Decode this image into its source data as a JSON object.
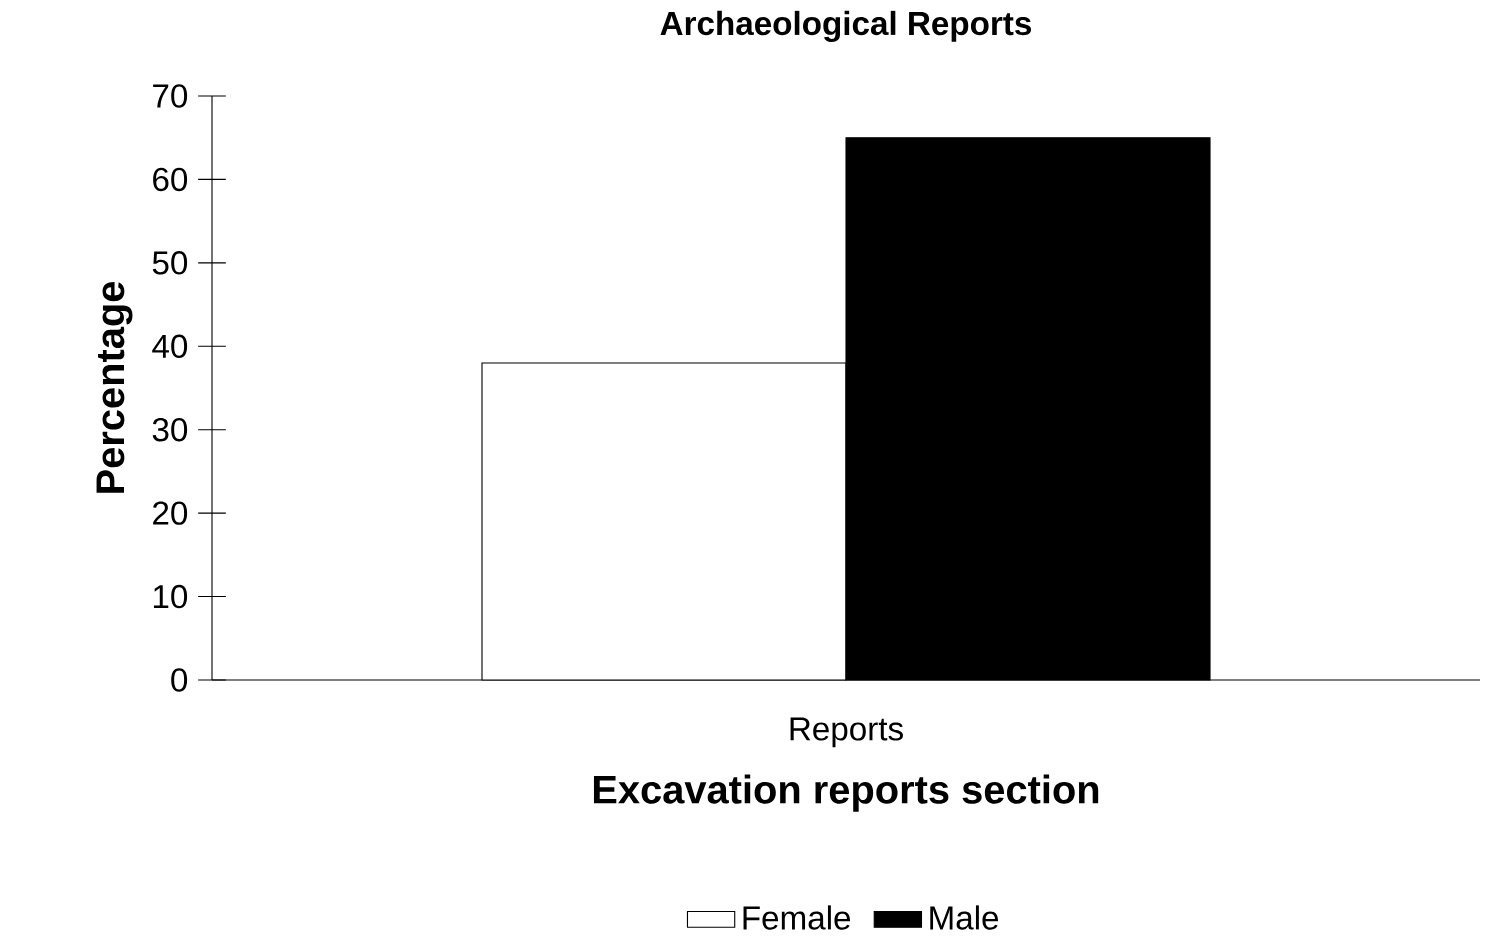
{
  "chart_data": {
    "type": "bar",
    "title": "Archaeological Reports",
    "xlabel": "Excavation reports section",
    "ylabel": "Percentage",
    "categories": [
      "Reports"
    ],
    "series": [
      {
        "name": "Female",
        "color": "#ffffff",
        "values": [
          38
        ]
      },
      {
        "name": "Male",
        "color": "#000000",
        "values": [
          65
        ]
      }
    ],
    "ylim": [
      0,
      70
    ],
    "yticks": [
      0,
      10,
      20,
      30,
      40,
      50,
      60,
      70
    ],
    "grid": false,
    "legend": "bottom"
  }
}
